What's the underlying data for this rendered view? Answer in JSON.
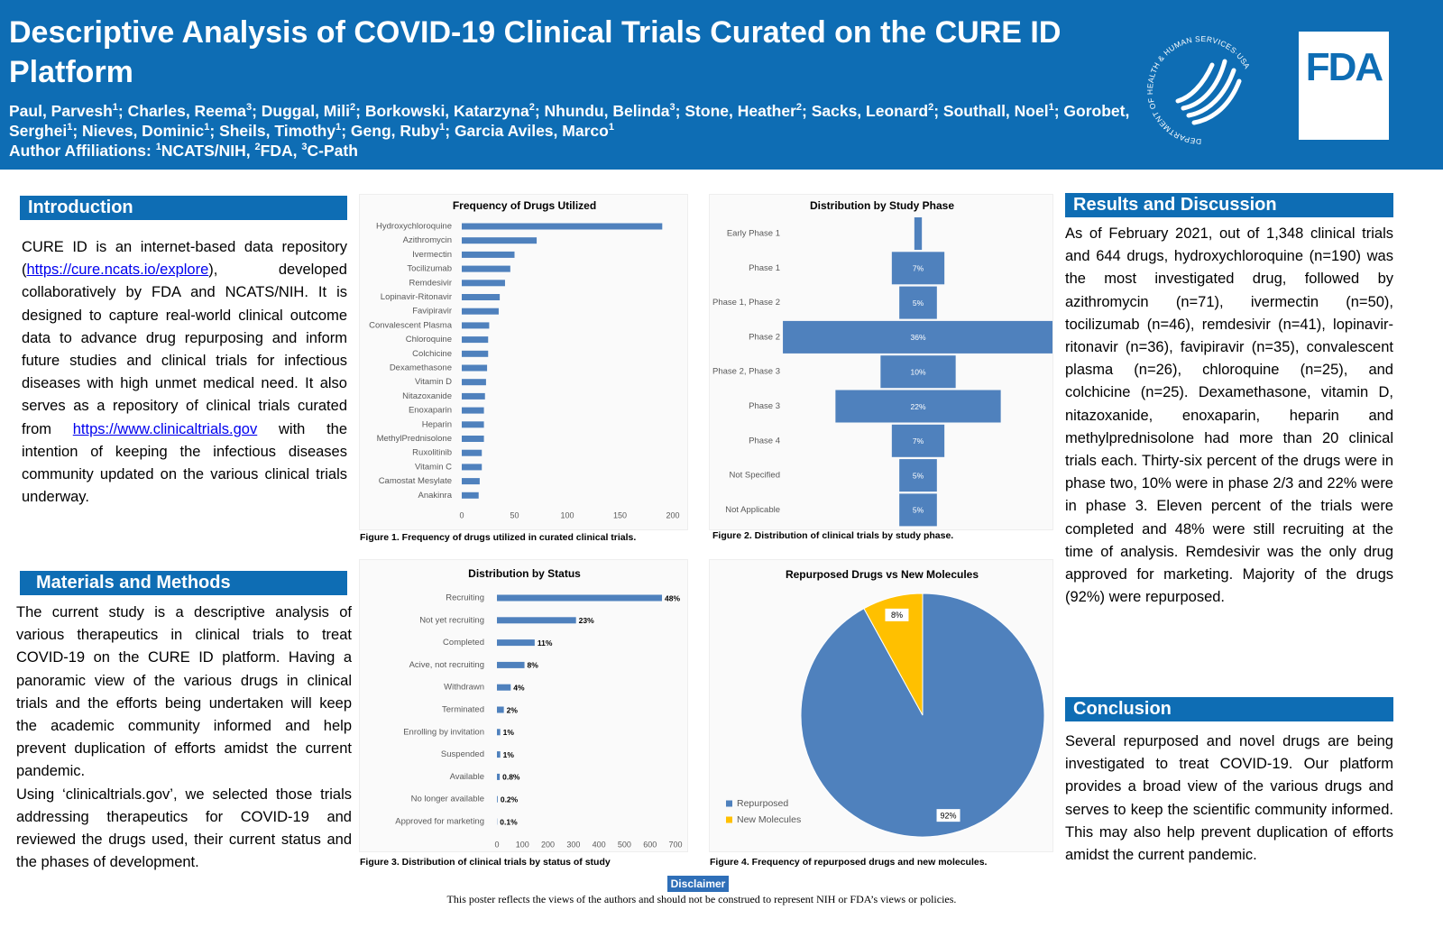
{
  "header": {
    "title": "Descriptive Analysis of COVID-19 Clinical Trials Curated on the CURE ID Platform",
    "authors": [
      {
        "name": "Paul, Parvesh",
        "sup": "1",
        "sep": ";"
      },
      {
        "name": "Charles, Reema",
        "sup": "3",
        "sep": ";"
      },
      {
        "name": "Duggal, Mili",
        "sup": "2",
        "sep": ";"
      },
      {
        "name": "Borkowski, Katarzyna",
        "sup": "2",
        "sep": ";"
      },
      {
        "name": "Nhundu, Belinda",
        "sup": "3",
        "sep": ";"
      },
      {
        "name": "Stone, Heather",
        "sup": "2",
        "sep": ";"
      },
      {
        "name": "Sacks, Leonard",
        "sup": "2",
        "sep": ";"
      },
      {
        "name": "Southall, Noel",
        "sup": "1",
        "sep": ";"
      },
      {
        "name": "Gorobet, Serghei",
        "sup": "1",
        "sep": ";"
      },
      {
        "name": "Nieves, Dominic",
        "sup": "1",
        "sep": ";"
      },
      {
        "name": "Sheils, Timothy",
        "sup": "1",
        "sep": ";"
      },
      {
        "name": "Geng, Ruby",
        "sup": "1",
        "sep": ";"
      },
      {
        "name": "Garcia Aviles, Marco",
        "sup": "1"
      }
    ],
    "affiliations_label": "Author Affiliations:",
    "affiliations": [
      {
        "sup": "1",
        "name": "NCATS/NIH",
        "sep": ","
      },
      {
        "sup": "2",
        "name": "FDA",
        "sep": ","
      },
      {
        "sup": "3",
        "name": "C-Path"
      }
    ],
    "hhs_seal": "DEPARTMENT OF HEALTH & HUMAN SERVICES·USA",
    "fda_logo": "FDA"
  },
  "introduction": {
    "heading": "Introduction",
    "parts": [
      {
        "text": "CURE ID is an internet-based data repository ("
      },
      {
        "link": "https://cure.ncats.io/explore"
      },
      {
        "text": "), developed collaboratively by FDA and NCATS/NIH. It is designed to capture real-world clinical outcome data to advance drug repurposing and inform future studies and clinical trials for infectious diseases with high unmet medical need. It also serves as a repository of clinical trials curated from "
      },
      {
        "link": "https://www.clinicaltrials.gov"
      },
      {
        "text": " with the intention of keeping the infectious diseases community updated on the various clinical trials underway."
      }
    ]
  },
  "methods": {
    "heading": "Materials and Methods",
    "paragraphs": [
      "The current study is a descriptive analysis of various therapeutics in clinical trials to treat COVID-19 on the CURE ID platform. Having a panoramic view of the various drugs in clinical trials and the efforts being undertaken will keep the academic community informed and help prevent duplication of efforts amidst the current pandemic.",
      "Using ‘clinicaltrials.gov’, we selected those trials addressing therapeutics for COVID-19 and reviewed the drugs used, their current status and the phases of development."
    ]
  },
  "results": {
    "heading": "Results and Discussion",
    "text": "As of February 2021, out of 1,348 clinical trials and 644 drugs, hydroxychloroquine (n=190) was the most investigated drug, followed by azithromycin (n=71), ivermectin (n=50), tocilizumab (n=46), remdesivir (n=41), lopinavir-ritonavir (n=36), favipiravir (n=35), convalescent plasma (n=26), chloroquine (n=25), and colchicine (n=25). Dexamethasone, vitamin D, nitazoxanide, enoxaparin, heparin and methylprednisolone had more than 20 clinical trials each. Thirty-six percent of the drugs were in phase two, 10% were in phase 2/3 and 22% were in phase 3.  Eleven percent of the trials were completed and 48% were still recruiting at the time of analysis. Remdesivir was the only drug approved for marketing. Majority of the drugs (92%) were repurposed."
  },
  "conclusion": {
    "heading": "Conclusion",
    "text": "Several repurposed and novel drugs are being investigated to treat COVID-19. Our platform provides a broad view of the various drugs and serves to keep the scientific community informed. This may also help prevent duplication of efforts amidst the current pandemic."
  },
  "disclaimer": {
    "label": "Disclaimer",
    "text": "This poster reflects the views of the authors and should not be construed to represent NIH or FDA’s views or policies."
  },
  "chart_data": [
    {
      "type": "bar",
      "orientation": "horizontal",
      "title": "Frequency of Drugs Utilized",
      "caption": "Figure 1. Frequency of drugs utilized in curated clinical trials.",
      "categories": [
        "Hydroxychloroquine",
        "Azithromycin",
        "Ivermectin",
        "Tocilizumab",
        "Remdesivir",
        "Lopinavir-Ritonavir",
        "Favipiravir",
        "Convalescent Plasma",
        "Chloroquine",
        "Colchicine",
        "Dexamethasone",
        "Vitamin D",
        "Nitazoxanide",
        "Enoxaparin",
        "Heparin",
        "MethylPrednisolone",
        "Ruxolitinib",
        "Vitamin C",
        "Camostat Mesylate",
        "Anakinra"
      ],
      "values": [
        190,
        71,
        50,
        46,
        41,
        36,
        35,
        26,
        25,
        25,
        24,
        23,
        22,
        21,
        21,
        21,
        19,
        19,
        17,
        16
      ],
      "color": "#4f81bd",
      "xlim": [
        0,
        200
      ],
      "xticks": [
        0,
        50,
        100,
        150,
        200
      ],
      "grid": false
    },
    {
      "type": "funnel",
      "title": "Distribution by Study Phase",
      "caption": "Figure 2. Distribution of clinical trials by study phase.",
      "categories": [
        "Early Phase 1",
        "Phase 1",
        "Phase 1, Phase 2",
        "Phase 2",
        "Phase 2, Phase 3",
        "Phase 3",
        "Phase 4",
        "Not Specified",
        "Not Applicable"
      ],
      "values": [
        1,
        7,
        5,
        36,
        10,
        22,
        7,
        5,
        5
      ],
      "value_labels": [
        null,
        "7%",
        "5%",
        "36%",
        "10%",
        "22%",
        "7%",
        "5%",
        "5%"
      ],
      "color": "#4f81bd"
    },
    {
      "type": "bar",
      "orientation": "horizontal",
      "title": "Distribution by Status",
      "caption": "Figure 3. Distribution of clinical trials by status of study",
      "categories": [
        "Recruiting",
        "Not yet recruiting",
        "Completed",
        "Acive, not recruiting",
        "Withdrawn",
        "Terminated",
        "Enrolling by invitation",
        "Suspended",
        "Available",
        "No longer available",
        "Approved for marketing"
      ],
      "values": [
        647,
        310,
        148,
        108,
        54,
        27,
        13,
        13,
        11,
        3,
        1
      ],
      "value_labels": [
        "48%",
        "23%",
        "11%",
        "8%",
        "4%",
        "2%",
        "1%",
        "1%",
        "0.8%",
        "0.2%",
        "0.1%"
      ],
      "color": "#4f81bd",
      "xlim": [
        0,
        700
      ],
      "xticks": [
        0,
        100,
        200,
        300,
        400,
        500,
        600,
        700
      ],
      "grid": false
    },
    {
      "type": "pie",
      "title": "Repurposed Drugs vs New Molecules",
      "caption": "Figure 4. Frequency of repurposed drugs and new molecules.",
      "categories": [
        "Repurposed",
        "New Molecules"
      ],
      "values": [
        92,
        8
      ],
      "value_labels": [
        "92%",
        "8%"
      ],
      "colors": [
        "#4f81bd",
        "#ffc000"
      ],
      "legend": "bottom-left"
    }
  ]
}
